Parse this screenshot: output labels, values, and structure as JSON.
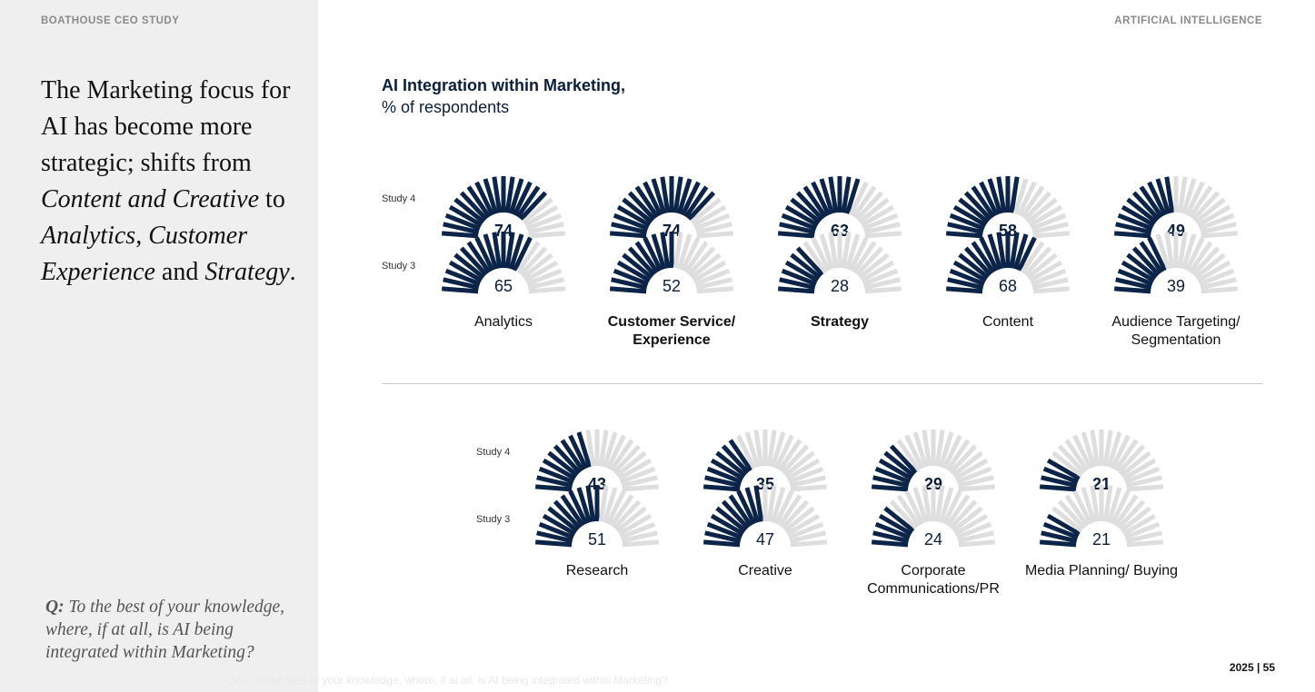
{
  "header": {
    "left_label": "BOATHOUSE CEO STUDY",
    "right_label": "ARTIFICIAL INTELLIGENCE"
  },
  "sidebar": {
    "headline_parts": [
      {
        "text": "The Marketing focus ",
        "italic": false
      },
      {
        "text": "for AI has become ",
        "italic": false
      },
      {
        "text": "more strategic; ",
        "italic": false
      },
      {
        "text": "shifts from ",
        "italic": false
      },
      {
        "text": "Content and Creative",
        "italic": true
      },
      {
        "text": " to ",
        "italic": false
      },
      {
        "text": "Analytics",
        "italic": true
      },
      {
        "text": ", ",
        "italic": false
      },
      {
        "text": "Customer Experience",
        "italic": true
      },
      {
        "text": " and ",
        "italic": false
      },
      {
        "text": "Strategy",
        "italic": true
      },
      {
        "text": ".",
        "italic": false
      }
    ],
    "question_prefix": "Q:",
    "question_text": " To the best of your knowledge, where, if at all, is AI being integrated within Marketing?"
  },
  "footer": {
    "page": "2025 | 55",
    "faint_note": "Q4L. To the best of your knowledge, where, if at all, is AI being integrated within Marketing?"
  },
  "chart_data": {
    "type": "gauge",
    "title": "AI Integration within Marketing,",
    "subtitle": "% of respondents",
    "row_labels": [
      "Study 4",
      "Study 3"
    ],
    "colors": {
      "filled": "#0b2447",
      "empty": "#dedede",
      "value_text": "#0b1f3a"
    },
    "rows": [
      [
        {
          "category": "Analytics",
          "bold": false,
          "study4": 74,
          "study3": 65
        },
        {
          "category": "Customer Service/ Experience",
          "bold": true,
          "study4": 74,
          "study3": 52
        },
        {
          "category": "Strategy",
          "bold": true,
          "study4": 63,
          "study3": 28
        },
        {
          "category": "Content",
          "bold": false,
          "study4": 58,
          "study3": 68
        },
        {
          "category": "Audience Targeting/ Segmentation",
          "bold": false,
          "study4": 49,
          "study3": 39
        }
      ],
      [
        {
          "category": "Research",
          "bold": false,
          "study4": 43,
          "study3": 51
        },
        {
          "category": "Creative",
          "bold": false,
          "study4": 35,
          "study3": 47
        },
        {
          "category": "Corporate Communications/PR",
          "bold": false,
          "study4": 29,
          "study3": 24
        },
        {
          "category": "Media Planning/ Buying",
          "bold": false,
          "study4": 21,
          "study3": 21
        }
      ]
    ]
  }
}
